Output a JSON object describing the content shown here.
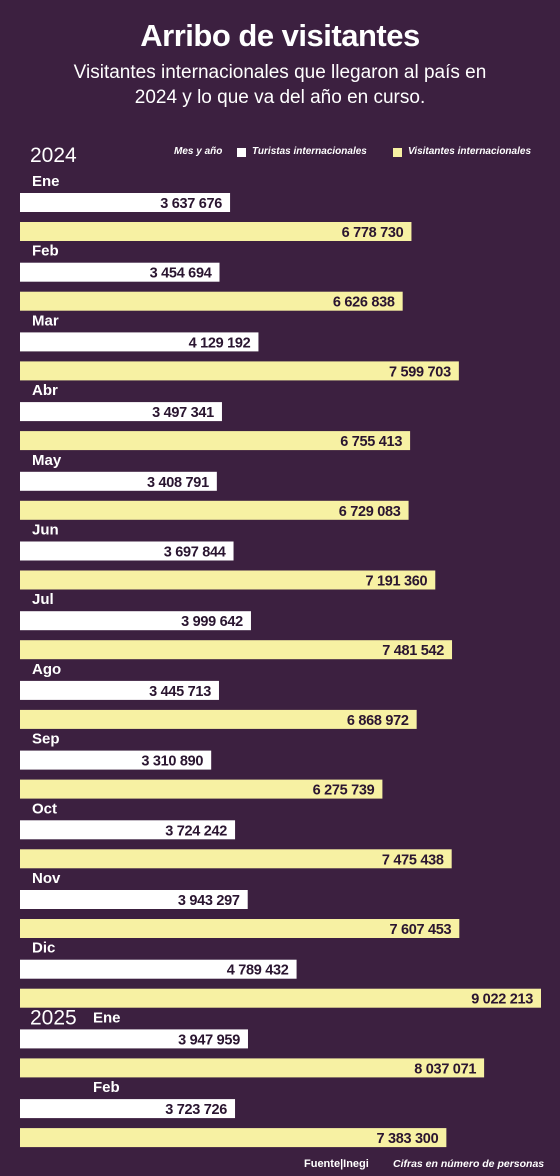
{
  "header": {
    "title": "Arribo de visitantes",
    "subtitle": "Visitantes internacionales que llegaron al país en 2024 y lo que va del año en curso."
  },
  "legend": {
    "title": "Mes y año",
    "items": [
      "Turistas internacionales",
      "Visitantes internacionales"
    ]
  },
  "footer": {
    "source_label": "Fuente",
    "source": "Inegi",
    "note": "Cifras en número de personas"
  },
  "colors": {
    "background": "#3c2040",
    "turistas": "#ffffff",
    "visitantes": "#f7f1a3"
  },
  "chart_data": {
    "type": "bar",
    "orientation": "horizontal",
    "title": "Arribo de visitantes",
    "legend_placement": "top-right",
    "grid": false,
    "groups": [
      {
        "year": "2024",
        "categories": [
          "Ene",
          "Feb",
          "Mar",
          "Abr",
          "May",
          "Jun",
          "Jul",
          "Ago",
          "Sep",
          "Oct",
          "Nov",
          "Dic"
        ]
      },
      {
        "year": "2025",
        "categories": [
          "Ene",
          "Feb"
        ]
      }
    ],
    "series": [
      {
        "name": "Turistas internacionales",
        "values": [
          3637676,
          3454694,
          4129192,
          3497341,
          3408791,
          3697844,
          3999642,
          3445713,
          3310890,
          3724242,
          3943297,
          4789432,
          3947959,
          3723726
        ],
        "labels": [
          "3 637 676",
          "3 454 694",
          "4 129 192",
          "3 497 341",
          "3 408 791",
          "3 697 844",
          "3 999 642",
          "3 445 713",
          "3 310 890",
          "3 724 242",
          "3 943 297",
          "4 789 432",
          "3 947 959",
          "3 723 726"
        ]
      },
      {
        "name": "Visitantes internacionales",
        "values": [
          6778730,
          6626838,
          7599703,
          6755413,
          6729083,
          7191360,
          7481542,
          6868972,
          6275739,
          7475438,
          7607453,
          9022213,
          8037071,
          7383300
        ],
        "labels": [
          "6 778 730",
          "6 626 838",
          "7 599 703",
          "6 755 413",
          "6 729 083",
          "7 191 360",
          "7 481 542",
          "6 868 972",
          "6 275 739",
          "7 475 438",
          "7 607 453",
          "9 022 213",
          "8 037 071",
          "7 383 300"
        ]
      }
    ]
  }
}
